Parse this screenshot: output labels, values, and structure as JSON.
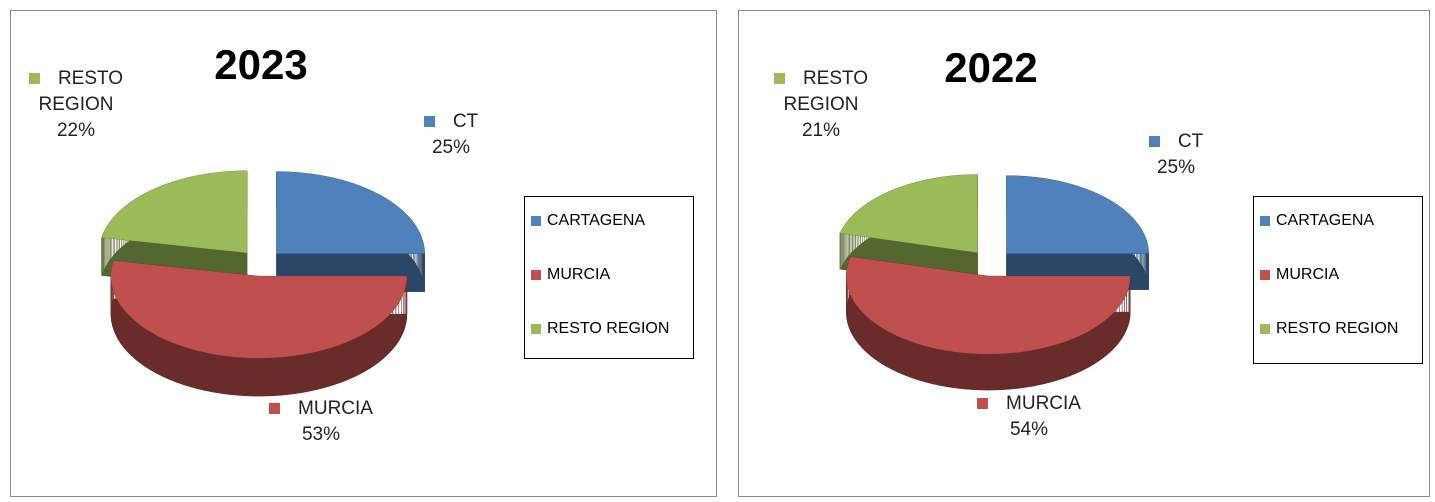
{
  "chart_data": [
    {
      "type": "pie3d",
      "title": "2023",
      "categories": [
        "CARTAGENA",
        "MURCIA",
        "RESTO REGION"
      ],
      "label_names": [
        "CT",
        "MURCIA",
        "RESTO REGION"
      ],
      "values": [
        25,
        53,
        22
      ],
      "value_labels": [
        "25%",
        "53%",
        "22%"
      ],
      "colors": [
        "#4f81bd",
        "#c0504d",
        "#9bbb59"
      ]
    },
    {
      "type": "pie3d",
      "title": "2022",
      "categories": [
        "CARTAGENA",
        "MURCIA",
        "RESTO REGION"
      ],
      "label_names": [
        "CT",
        "MURCIA",
        "RESTO REGION"
      ],
      "values": [
        25,
        54,
        21
      ],
      "value_labels": [
        "25%",
        "54%",
        "21%"
      ],
      "colors": [
        "#4f81bd",
        "#c0504d",
        "#9bbb59"
      ]
    }
  ]
}
